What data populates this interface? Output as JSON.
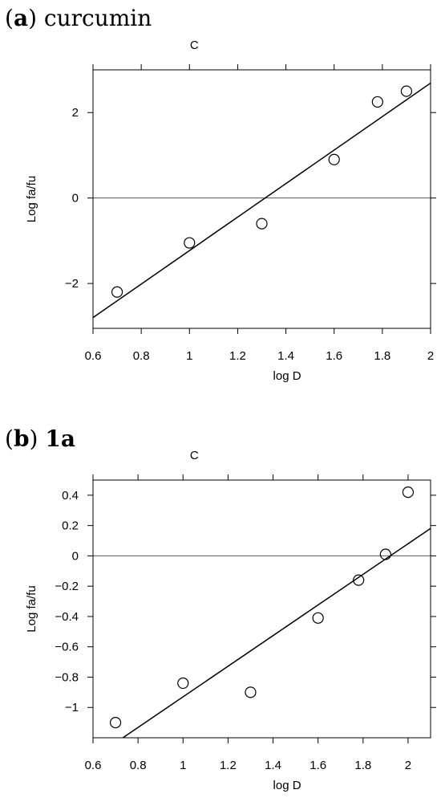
{
  "panels": [
    {
      "letter": "a",
      "name": "curcumin"
    },
    {
      "letter": "b",
      "name": "1a"
    }
  ],
  "chart_data": [
    {
      "type": "scatter",
      "title": "C",
      "xlabel": "log D",
      "ylabel": "Log fa/fu",
      "xlim": [
        0.6,
        2.0
      ],
      "ylim": [
        -3.05,
        3.0
      ],
      "xticks": [
        0.6,
        0.8,
        1.0,
        1.2,
        1.4,
        1.6,
        1.8,
        2.0
      ],
      "xtick_labels": [
        "0.6",
        "0.8",
        "1",
        "1.2",
        "1.4",
        "1.6",
        "1.8",
        "2"
      ],
      "yticks": [
        -2,
        0,
        2
      ],
      "ytick_labels": [
        "−2",
        "0",
        "2"
      ],
      "grid": false,
      "reference_line_y": 0,
      "points": [
        {
          "x": 0.7,
          "y": -2.2
        },
        {
          "x": 1.0,
          "y": -1.05
        },
        {
          "x": 1.3,
          "y": -0.6
        },
        {
          "x": 1.6,
          "y": 0.9
        },
        {
          "x": 1.78,
          "y": 2.25
        },
        {
          "x": 1.9,
          "y": 2.5
        }
      ],
      "fit_line": {
        "slope": 3.92,
        "intercept": -5.15
      }
    },
    {
      "type": "scatter",
      "title": "C",
      "xlabel": "log D",
      "ylabel": "Log fa/fu",
      "xlim": [
        0.6,
        2.1
      ],
      "ylim": [
        -1.2,
        0.5
      ],
      "xticks": [
        0.6,
        0.8,
        1.0,
        1.2,
        1.4,
        1.6,
        1.8,
        2.0
      ],
      "xtick_labels": [
        "0.6",
        "0.8",
        "1",
        "1.2",
        "1.4",
        "1.6",
        "1.8",
        "2"
      ],
      "yticks": [
        -1.0,
        -0.8,
        -0.6,
        -0.4,
        -0.2,
        0.0,
        0.2,
        0.4
      ],
      "ytick_labels": [
        "−1",
        "−0.8",
        "−0.6",
        "−0.4",
        "−0.2",
        "0",
        "0.2",
        "0.4"
      ],
      "grid": false,
      "reference_line_y": 0,
      "points": [
        {
          "x": 0.7,
          "y": -1.1
        },
        {
          "x": 1.0,
          "y": -0.84
        },
        {
          "x": 1.3,
          "y": -0.9
        },
        {
          "x": 1.6,
          "y": -0.41
        },
        {
          "x": 1.78,
          "y": -0.16
        },
        {
          "x": 1.9,
          "y": 0.01
        },
        {
          "x": 2.0,
          "y": 0.42
        }
      ],
      "fit_line": {
        "slope": 1.01,
        "intercept": -1.94
      }
    }
  ]
}
